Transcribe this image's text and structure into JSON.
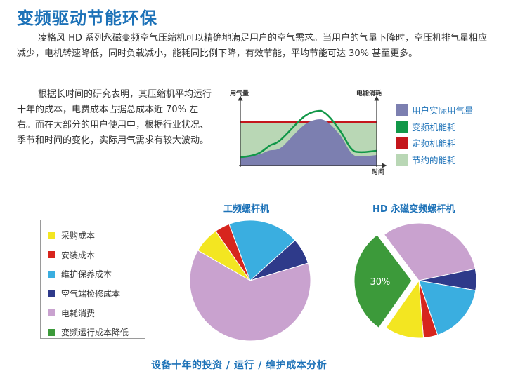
{
  "title": "变频驱动节能环保",
  "paragraph1": "凌格风 HD 系列永磁变频空气压缩机可以精确地满足用户的空气需求。当用户的气量下降时，空压机排气量相应减少，电机转速降低，同时负载减小，能耗同比例下降，有效节能，平均节能可达 30% 甚至更多。",
  "paragraph2": "根据长时间的研究表明，其压缩机平均运行十年的成本，电费成本占据总成本近 70% 左右。而在大部分的用户使用中，根据行业状况、季节和时间的变化，实际用气需求有较大波动。",
  "area_chart": {
    "y_left_label": "用气量",
    "y_right_label": "电能消耗",
    "x_label": "时间"
  },
  "area_legend": [
    {
      "label": "用户实际用气量",
      "color": "#7c7fb0"
    },
    {
      "label": "变频机能耗",
      "color": "#119748"
    },
    {
      "label": "定频机能耗",
      "color": "#c4161c"
    },
    {
      "label": "节约的能耗",
      "color": "#b9d7b5"
    }
  ],
  "cost_legend": [
    {
      "label": "采购成本",
      "color": "#f3e621"
    },
    {
      "label": "安装成本",
      "color": "#d7251d"
    },
    {
      "label": "维护保养成本",
      "color": "#3aaee0"
    },
    {
      "label": "空气端检修成本",
      "color": "#2e3a8a"
    },
    {
      "label": "电耗消费",
      "color": "#c9a2cf"
    },
    {
      "label": "变频运行成本降低",
      "color": "#3c9a3a"
    }
  ],
  "pie_left": {
    "title": "工频螺杆机",
    "slices": [
      {
        "name": "采购成本",
        "value": 7,
        "color": "#f3e621"
      },
      {
        "name": "安装成本",
        "value": 4,
        "color": "#d7251d"
      },
      {
        "name": "维护保养成本",
        "value": 19,
        "color": "#3aaee0"
      },
      {
        "name": "空气端检修成本",
        "value": 7,
        "color": "#2e3a8a"
      },
      {
        "name": "电耗消费",
        "value": 63,
        "color": "#c9a2cf"
      }
    ]
  },
  "pie_right": {
    "title": "HD 永磁变频螺杆机",
    "exploded_label": "30%",
    "slices": [
      {
        "name": "变频运行成本降低",
        "value": 30,
        "color": "#3c9a3a",
        "exploded": true
      },
      {
        "name": "电耗消费",
        "value": 32,
        "color": "#c9a2cf"
      },
      {
        "name": "空气端检修成本",
        "value": 6,
        "color": "#2e3a8a"
      },
      {
        "name": "维护保养成本",
        "value": 17,
        "color": "#3aaee0"
      },
      {
        "name": "安装成本",
        "value": 4,
        "color": "#d7251d"
      },
      {
        "name": "采购成本",
        "value": 11,
        "color": "#f3e621"
      }
    ]
  },
  "caption": "设备十年的投资 / 运行 / 维护成本分析"
}
